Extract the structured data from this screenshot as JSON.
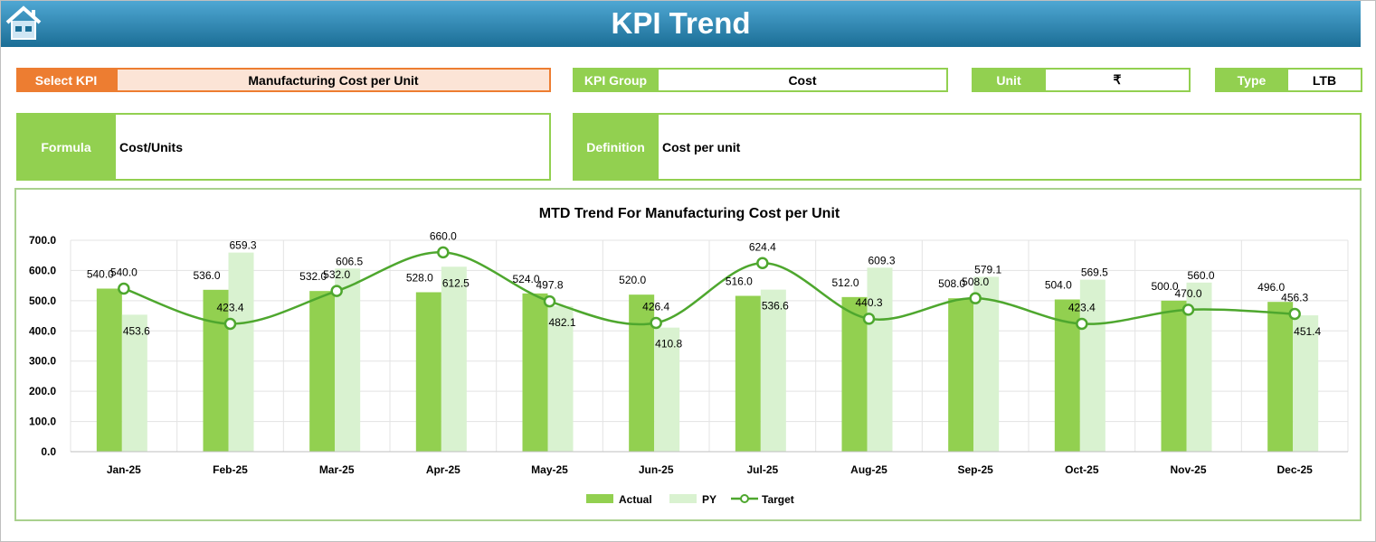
{
  "header": {
    "title": "KPI Trend",
    "home_icon": "home-icon"
  },
  "fields": {
    "select_kpi_label": "Select KPI",
    "select_kpi_value": "Manufacturing Cost per Unit",
    "kpi_group_label": "KPI Group",
    "kpi_group_value": "Cost",
    "unit_label": "Unit",
    "unit_value": "₹",
    "type_label": "Type",
    "type_value": "LTB",
    "formula_label": "Formula",
    "formula_value": "Cost/Units",
    "definition_label": "Definition",
    "definition_value": "Cost per unit"
  },
  "colors": {
    "actual": "#92d050",
    "py": "#d9f2d0",
    "target": "#4ea72e",
    "header": "#1b6e96",
    "accent": "#ed7d31"
  },
  "chart_data": {
    "type": "bar",
    "title": "MTD Trend For Manufacturing Cost per Unit",
    "categories": [
      "Jan-25",
      "Feb-25",
      "Mar-25",
      "Apr-25",
      "May-25",
      "Jun-25",
      "Jul-25",
      "Aug-25",
      "Sep-25",
      "Oct-25",
      "Nov-25",
      "Dec-25"
    ],
    "ylim": [
      0,
      700
    ],
    "yticks": [
      "0.0",
      "100.0",
      "200.0",
      "300.0",
      "400.0",
      "500.0",
      "600.0",
      "700.0"
    ],
    "grid": true,
    "legend": "bottom",
    "series": [
      {
        "name": "Actual",
        "type": "bar",
        "values": [
          540.0,
          536.0,
          532.0,
          528.0,
          524.0,
          520.0,
          516.0,
          512.0,
          508.0,
          504.0,
          500.0,
          496.0
        ]
      },
      {
        "name": "PY",
        "type": "bar",
        "values": [
          453.6,
          659.3,
          606.5,
          612.5,
          482.1,
          410.8,
          536.6,
          609.3,
          579.1,
          569.5,
          560.0,
          451.4
        ]
      },
      {
        "name": "Target",
        "type": "line",
        "values": [
          540.0,
          423.4,
          532.0,
          660.0,
          497.8,
          426.4,
          624.4,
          440.3,
          508.0,
          423.4,
          470.0,
          456.3
        ]
      }
    ]
  }
}
